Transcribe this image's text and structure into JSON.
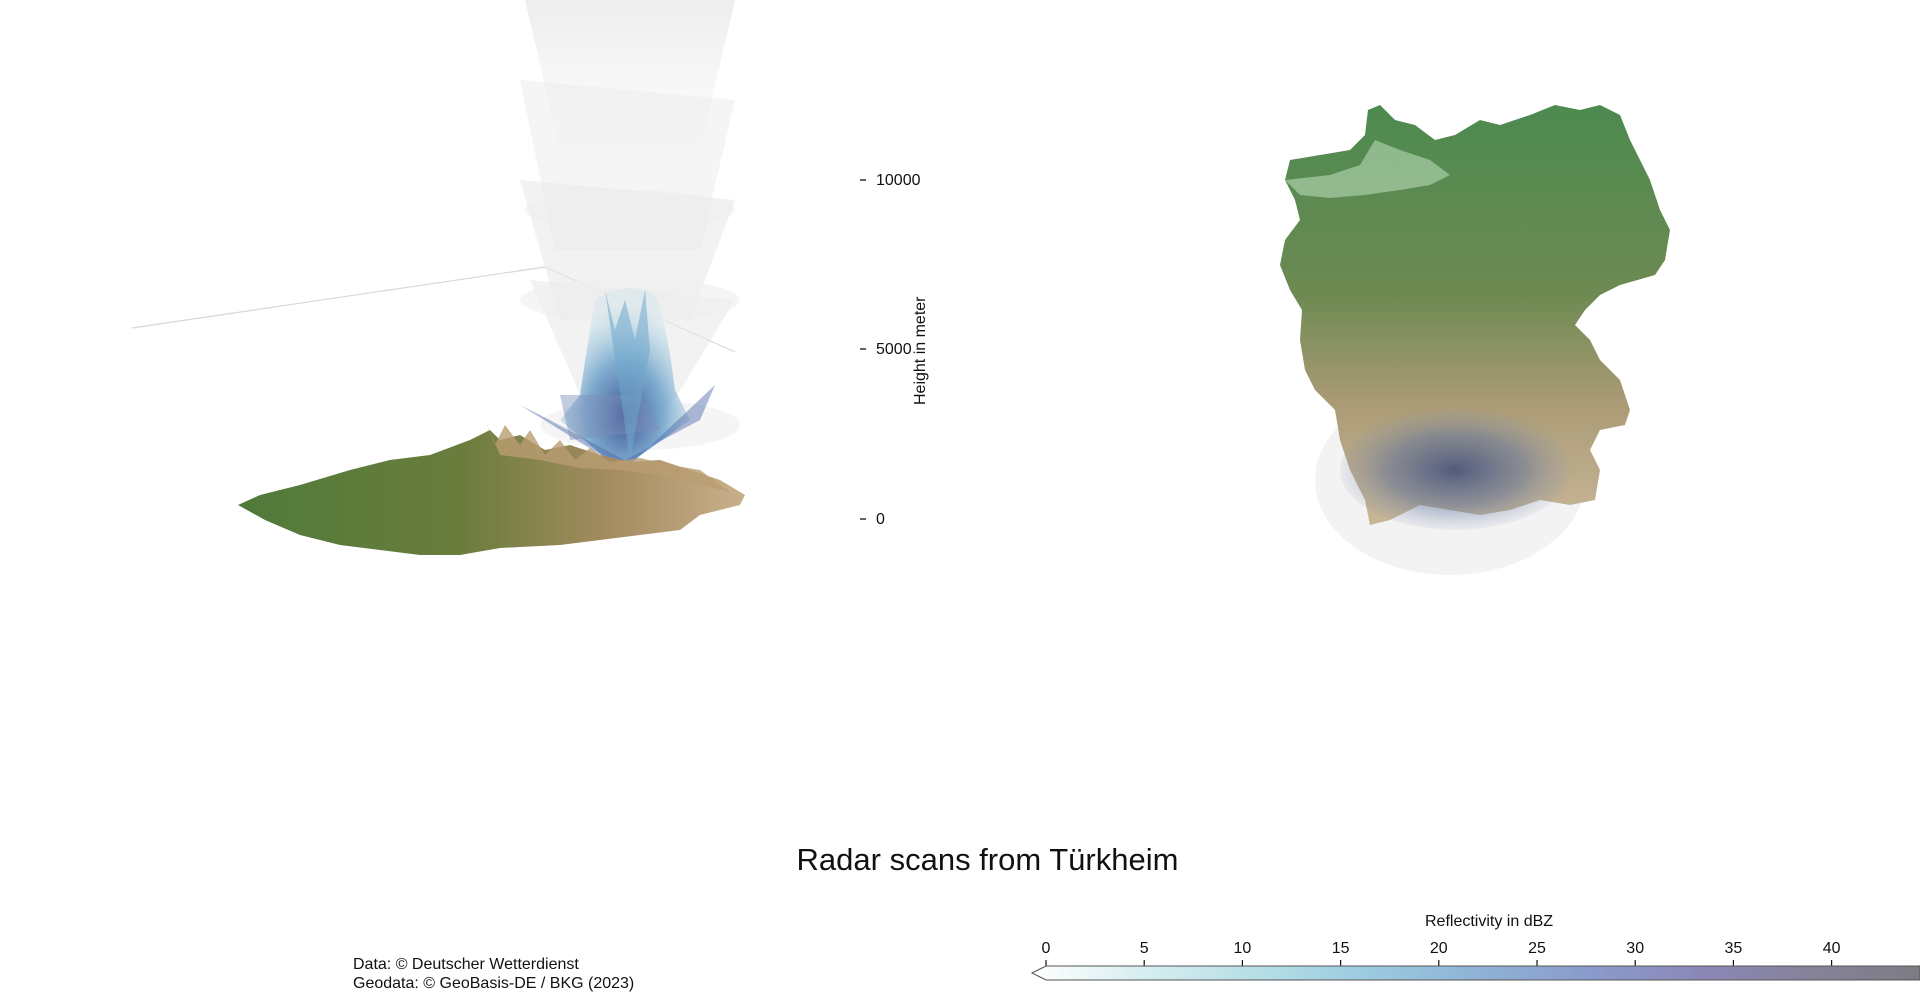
{
  "title": "Radar scans from Türkheim",
  "credits": {
    "data": "Data: © Deutscher Wetterdienst",
    "geodata": "Geodata: © GeoBasis-DE / BKG (2023)"
  },
  "height_axis": {
    "label": "Height in meter",
    "ticks": [
      "10000",
      "5000",
      "0"
    ]
  },
  "legend": {
    "title": "Reflectivity in dBZ",
    "ticks": [
      "0",
      "5",
      "10",
      "15",
      "20",
      "25",
      "30",
      "35",
      "40"
    ],
    "colors": [
      "#ffffff",
      "#d6eef0",
      "#b7dfe6",
      "#9ccbe0",
      "#8fb3d6",
      "#8a9ccc",
      "#8b88b8",
      "#86829a",
      "#7c7c84"
    ]
  }
}
